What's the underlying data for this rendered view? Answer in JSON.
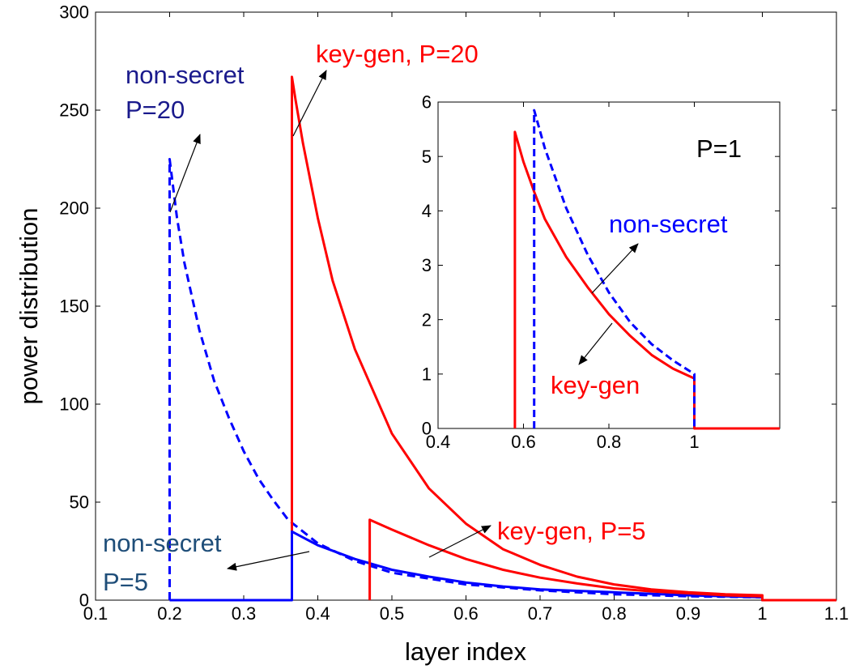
{
  "chart_data": [
    {
      "type": "line",
      "xlabel": "layer index",
      "ylabel": "power distribution",
      "xlim": [
        0.1,
        1.1
      ],
      "ylim": [
        0,
        300
      ],
      "xticks": [
        0.1,
        0.2,
        0.3,
        0.4,
        0.5,
        0.6,
        0.7,
        0.8,
        0.9,
        1.0,
        1.1
      ],
      "xtick_labels": [
        "0.1",
        "0.2",
        "0.3",
        "0.4",
        "0.5",
        "0.6",
        "0.7",
        "0.8",
        "0.9",
        "1",
        "1.1"
      ],
      "yticks": [
        0,
        50,
        100,
        150,
        200,
        250,
        300
      ],
      "ytick_labels": [
        "0",
        "50",
        "100",
        "150",
        "200",
        "250",
        "300"
      ],
      "grid": false,
      "series": [
        {
          "color": "#0000ff",
          "style": "dashed",
          "x": [
            0.2,
            0.2,
            0.21,
            0.22,
            0.24,
            0.26,
            0.28,
            0.3,
            0.32,
            0.34,
            0.36,
            0.38,
            0.4,
            0.45,
            0.5,
            0.6,
            0.7,
            0.8,
            0.9,
            1.0,
            1.0,
            1.1
          ],
          "y": [
            0,
            225,
            195,
            172,
            138,
            112,
            93,
            76,
            62,
            51,
            41,
            35,
            29,
            20,
            14,
            8,
            5,
            3,
            2,
            1.5,
            0,
            0
          ]
        },
        {
          "color": "#ff0000",
          "style": "solid",
          "x": [
            0.365,
            0.365,
            0.37,
            0.38,
            0.4,
            0.42,
            0.45,
            0.5,
            0.55,
            0.6,
            0.65,
            0.7,
            0.75,
            0.8,
            0.85,
            0.9,
            0.95,
            1.0,
            1.0,
            1.1
          ],
          "y": [
            0,
            267,
            255,
            233,
            195,
            163,
            128,
            85,
            57,
            39,
            26,
            18,
            12,
            8,
            5.5,
            4,
            3,
            2.5,
            0,
            0
          ]
        },
        {
          "color": "#0000ff",
          "style": "solid",
          "x": [
            0.2,
            0.2,
            0.365,
            0.365,
            0.4,
            0.45,
            0.5,
            0.55,
            0.6,
            0.65,
            0.7,
            0.8,
            0.9,
            1.0,
            1.0,
            1.1
          ],
          "y": [
            0,
            0,
            0,
            35,
            28,
            21,
            15.5,
            12,
            9,
            7,
            5.5,
            4,
            2.5,
            1.5,
            0,
            0
          ]
        },
        {
          "color": "#ff0000",
          "style": "solid",
          "x": [
            0.47,
            0.47,
            0.5,
            0.55,
            0.6,
            0.65,
            0.7,
            0.75,
            0.8,
            0.85,
            0.9,
            0.95,
            1.0,
            1.0,
            1.1
          ],
          "y": [
            0,
            41,
            36,
            28,
            21,
            15.5,
            11.5,
            8.5,
            6,
            4.5,
            3.5,
            2.5,
            2,
            0,
            0
          ]
        }
      ]
    },
    {
      "type": "line",
      "inset": true,
      "xlim": [
        0.4,
        1.2
      ],
      "ylim": [
        0,
        6
      ],
      "xticks": [
        0.4,
        0.6,
        0.8,
        1.0
      ],
      "xtick_labels": [
        "0.4",
        "0.6",
        "0.8",
        "1"
      ],
      "yticks": [
        0,
        1,
        2,
        3,
        4,
        5,
        6
      ],
      "ytick_labels": [
        "0",
        "1",
        "2",
        "3",
        "4",
        "5",
        "6"
      ],
      "grid": false,
      "series": [
        {
          "color": "#ff0000",
          "style": "solid",
          "x": [
            0.58,
            0.58,
            0.6,
            0.625,
            0.65,
            0.7,
            0.75,
            0.8,
            0.85,
            0.9,
            0.95,
            1.0,
            1.0,
            1.2
          ],
          "y": [
            0,
            5.45,
            4.9,
            4.35,
            3.85,
            3.15,
            2.6,
            2.1,
            1.7,
            1.35,
            1.1,
            0.92,
            0,
            0
          ]
        },
        {
          "color": "#0000ff",
          "style": "dashed",
          "x": [
            0.625,
            0.625,
            0.65,
            0.7,
            0.75,
            0.8,
            0.85,
            0.9,
            0.95,
            1.0,
            1.0
          ],
          "y": [
            0,
            5.85,
            5.15,
            4.05,
            3.2,
            2.5,
            1.95,
            1.55,
            1.25,
            1.0,
            0
          ]
        }
      ]
    }
  ],
  "annotations": {
    "ns20_line1": "non-secret",
    "ns20_line2": "P=20",
    "kg20": "key-gen, P=20",
    "kg5": "key-gen, P=5",
    "ns5_line1": "non-secret",
    "ns5_line2": "P=5",
    "inset_title": "P=1",
    "inset_nonsecret": "non-secret",
    "inset_keygen": "key-gen"
  },
  "colors": {
    "red": "#ff0000",
    "blue": "#0000ff",
    "label_blue": "#1a1a8c",
    "label_teal": "#1f4e79",
    "label_red": "#ff0000",
    "inset_blue": "#0000ff"
  }
}
